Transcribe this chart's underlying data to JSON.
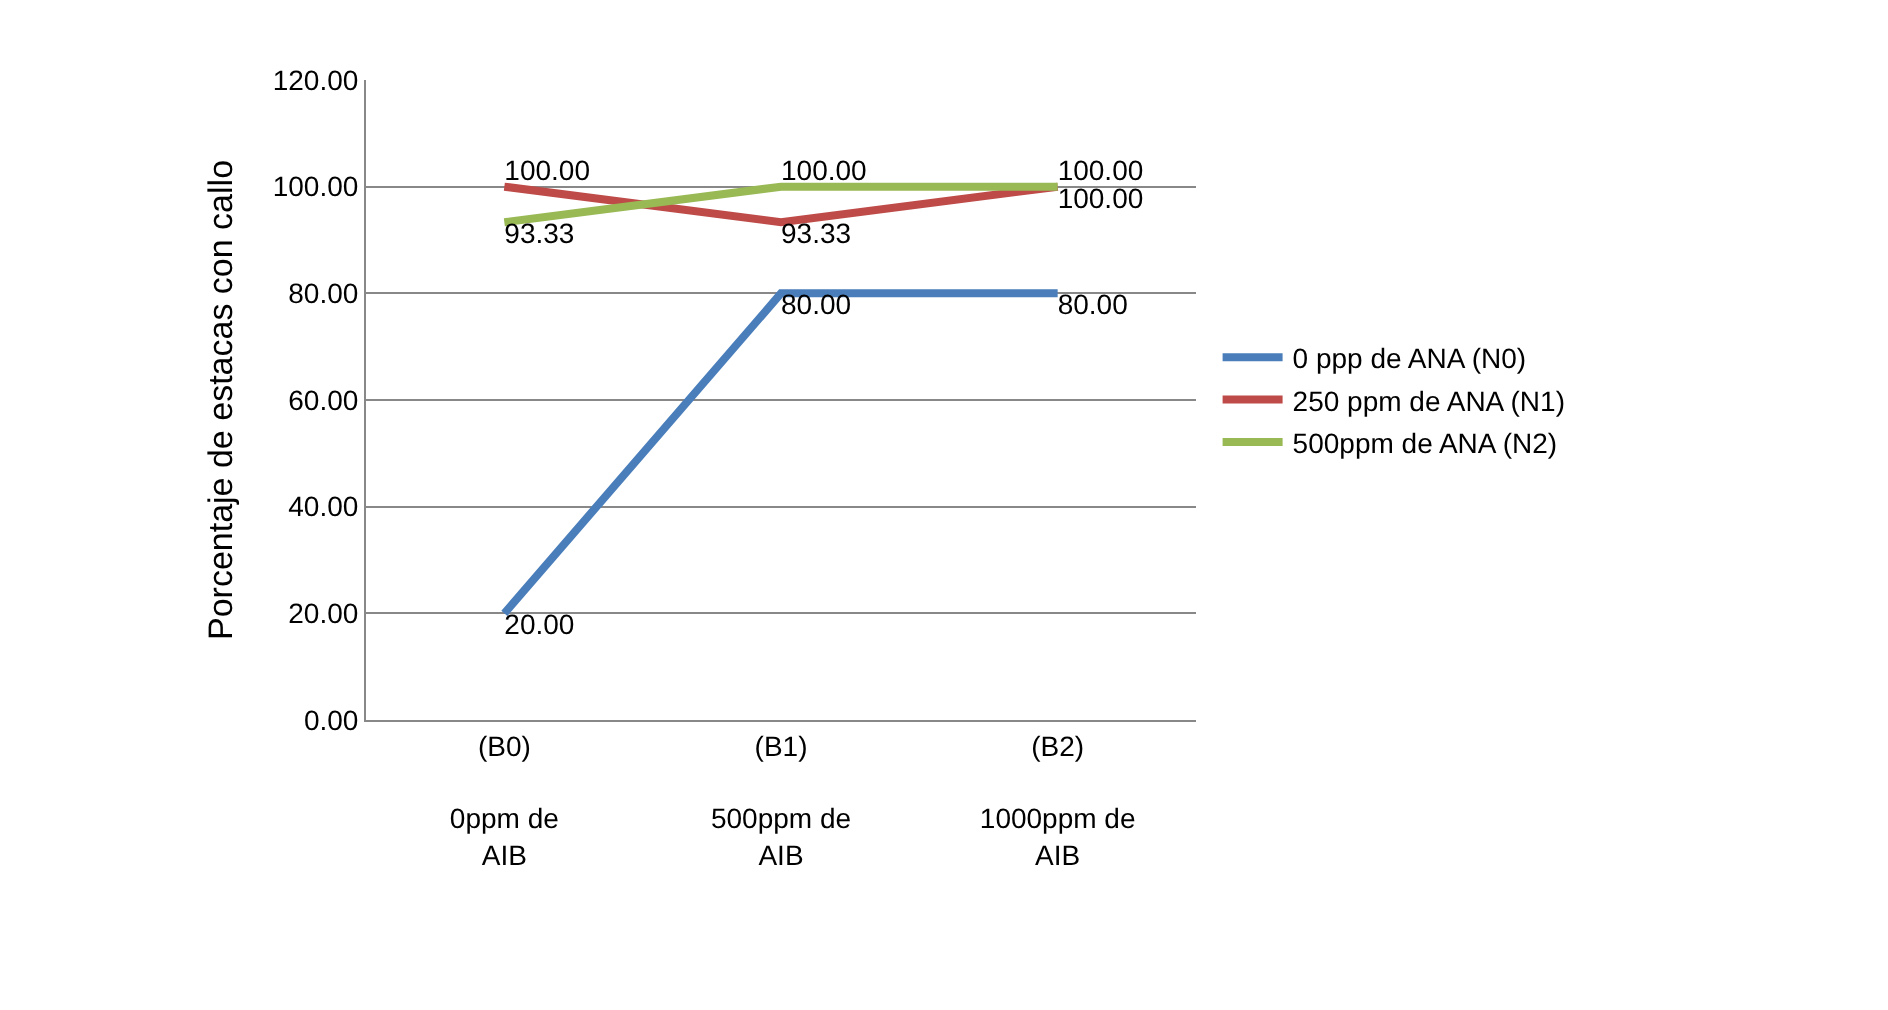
{
  "chart_data": {
    "type": "line",
    "ylabel": "Porcentaje de estacas con callo",
    "categories": [
      "(B0)\n\n0ppm de\nAIB",
      "(B1)\n\n500ppm de\nAIB",
      "(B2)\n\n1000ppm de\nAIB"
    ],
    "series": [
      {
        "name": "0 ppp de ANA (N0)",
        "color": "#4a7ebb",
        "values": [
          20,
          80,
          80
        ],
        "value_labels": [
          "20.00",
          "80.00",
          "80.00"
        ]
      },
      {
        "name": "250 ppm de ANA (N1)",
        "color": "#be4b48",
        "values": [
          100,
          93.33,
          100
        ],
        "value_labels": [
          "100.00",
          "93.33",
          "100.00"
        ]
      },
      {
        "name": "500ppm de ANA (N2)",
        "color": "#98b954",
        "values": [
          93.33,
          100,
          100
        ],
        "value_labels": [
          "93.33",
          "100.00",
          "100.00"
        ]
      }
    ],
    "ylim": [
      0,
      120
    ],
    "yticks": [
      {
        "value": 0,
        "label": "0.00"
      },
      {
        "value": 20,
        "label": "20.00"
      },
      {
        "value": 40,
        "label": "40.00"
      },
      {
        "value": 60,
        "label": "60.00"
      },
      {
        "value": 80,
        "label": "80.00"
      },
      {
        "value": 100,
        "label": "100.00"
      },
      {
        "value": 120,
        "label": "120.00"
      }
    ],
    "grid": "y",
    "legend": "right",
    "marker": "none",
    "line_style": "solid"
  }
}
